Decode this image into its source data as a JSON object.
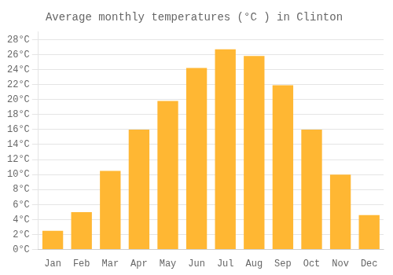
{
  "chart_data": {
    "type": "bar",
    "title": "Average monthly temperatures (°C ) in Clinton",
    "categories": [
      "Jan",
      "Feb",
      "Mar",
      "Apr",
      "May",
      "Jun",
      "Jul",
      "Aug",
      "Sep",
      "Oct",
      "Nov",
      "Dec"
    ],
    "values": [
      2.5,
      5.0,
      10.5,
      16.0,
      19.8,
      24.2,
      26.7,
      25.8,
      21.9,
      16.0,
      10.0,
      4.6
    ],
    "color": "#FFB733",
    "ylim": [
      0,
      29
    ],
    "yticks": [
      {
        "value": 0,
        "label": "0°C"
      },
      {
        "value": 2,
        "label": "2°C"
      },
      {
        "value": 4,
        "label": "4°C"
      },
      {
        "value": 6,
        "label": "6°C"
      },
      {
        "value": 8,
        "label": "8°C"
      },
      {
        "value": 10,
        "label": "10°C"
      },
      {
        "value": 12,
        "label": "12°C"
      },
      {
        "value": 14,
        "label": "14°C"
      },
      {
        "value": 16,
        "label": "16°C"
      },
      {
        "value": 18,
        "label": "18°C"
      },
      {
        "value": 20,
        "label": "20°C"
      },
      {
        "value": 22,
        "label": "22°C"
      },
      {
        "value": 24,
        "label": "24°C"
      },
      {
        "value": 26,
        "label": "26°C"
      },
      {
        "value": 28,
        "label": "28°C"
      }
    ],
    "grid": true
  }
}
